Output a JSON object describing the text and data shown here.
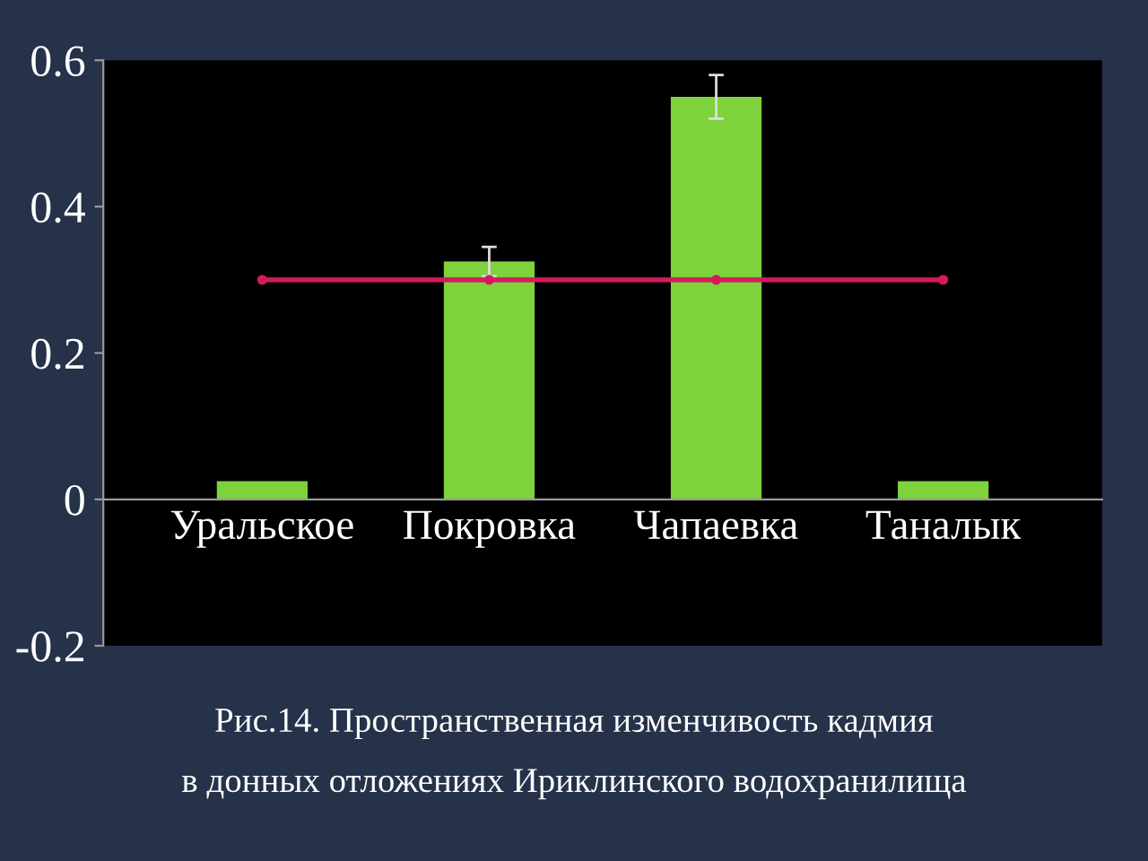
{
  "chart_data": {
    "type": "bar",
    "categories": [
      "Уральское",
      "Покровка",
      "Чапаевка",
      "Таналык"
    ],
    "series": [
      {
        "color": "#7ed23c",
        "values": [
          0.025,
          0.325,
          0.55,
          0.025
        ],
        "errors": [
          null,
          0.02,
          0.03,
          null
        ]
      },
      {
        "type": "line",
        "color": "#d6195f",
        "values": [
          0.3,
          0.3,
          0.3,
          0.3
        ]
      }
    ],
    "ylim": [
      -0.2,
      0.6
    ],
    "yticks": [
      -0.2,
      0,
      0.2,
      0.4,
      0.6
    ],
    "grid": false,
    "legend": false,
    "marker": "circle",
    "line_style": "solid",
    "annotations": [
      "Рис.14. Пространственная изменчивость кадмия",
      "в донных отложениях Ириклинского водохранилища"
    ]
  }
}
